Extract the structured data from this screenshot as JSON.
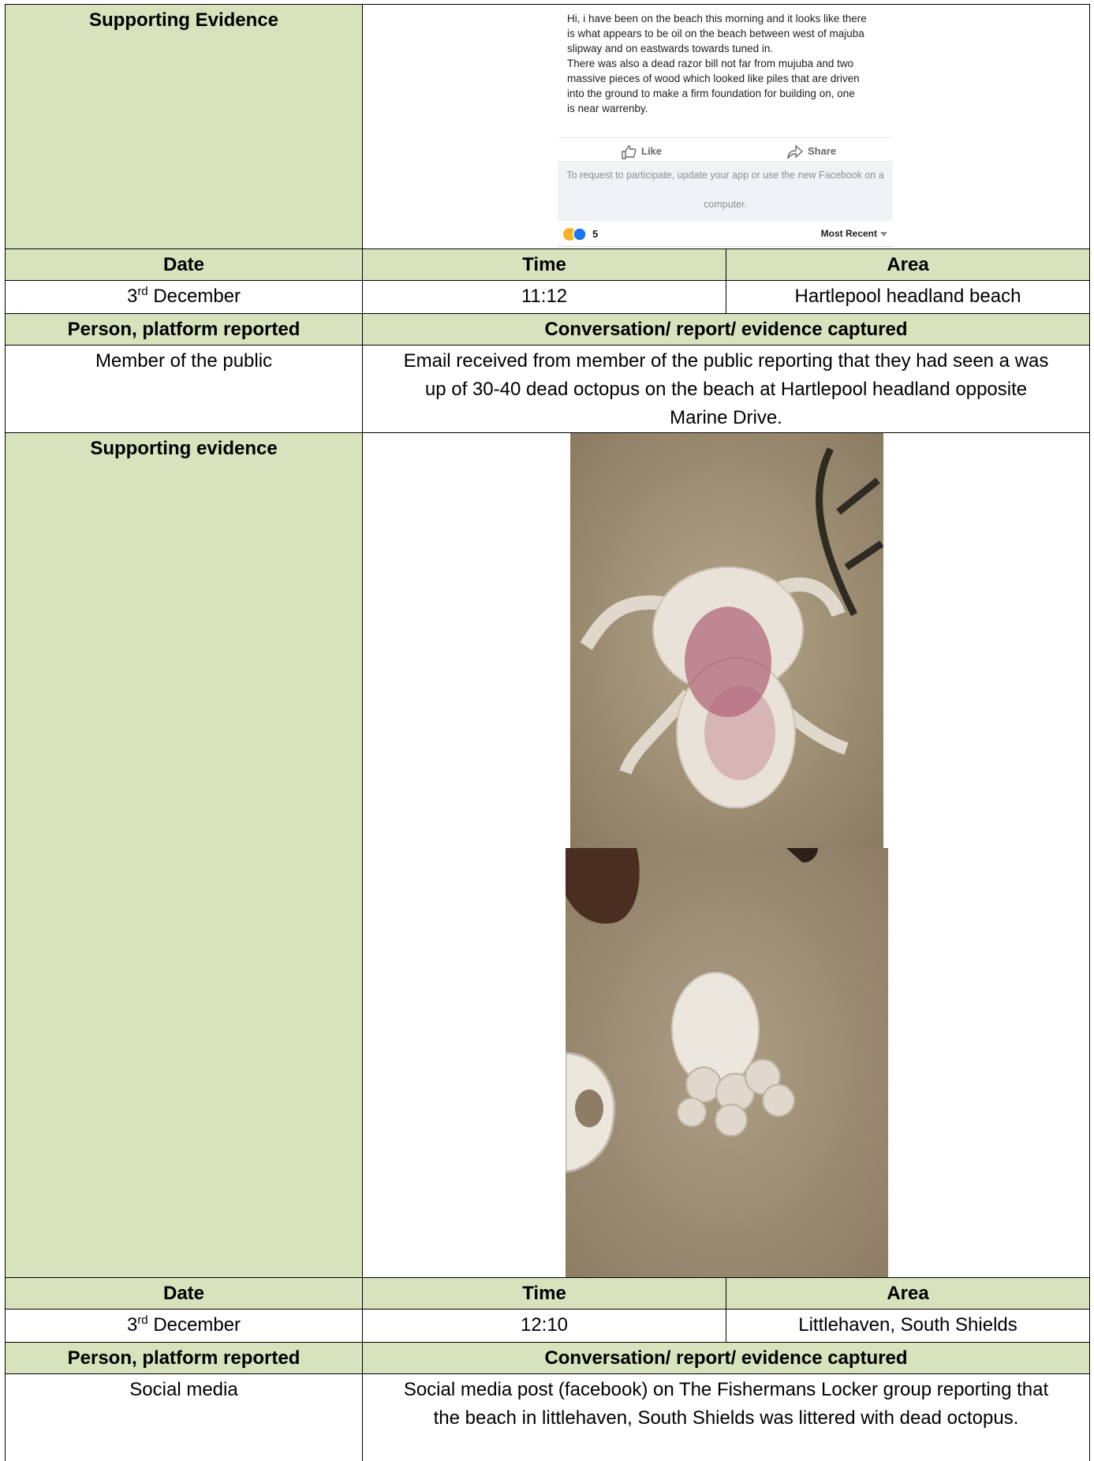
{
  "evidence_post": {
    "header": "Supporting Evidence",
    "post_lines": [
      "Hi, i have been on the beach this morning and it looks like there",
      "is what appears to be oil on the beach between west of majuba",
      "slipway and on eastwards towards tuned in.",
      "There was also a dead razor bill not far from mujuba and two",
      "massive pieces of wood which looked like piles that are driven",
      "into the ground to make a firm foundation for building on, one",
      "is near warrenby."
    ],
    "like": "Like",
    "share": "Share",
    "notice_lines": [
      "To request to participate, update your app or use the new Facebook on a",
      "computer."
    ],
    "reaction_count": "5",
    "sort": "Most Recent"
  },
  "reports": [
    {
      "date_header": "Date",
      "time_header": "Time",
      "area_header": "Area",
      "date": {
        "day": "3",
        "suffix": "rd",
        "month": "December"
      },
      "time": "11:12",
      "area": "Hartlepool headland beach",
      "person_header": "Person, platform reported",
      "conversation_header": "Conversation/ report/ evidence captured",
      "person": "Member of the public",
      "conversation": "Email received from member of the public reporting that they had seen a was up of 30-40 dead octopus on the beach at Hartlepool headland opposite Marine Drive.",
      "evidence_header": "Supporting evidence"
    },
    {
      "date_header": "Date",
      "time_header": "Time",
      "area_header": "Area",
      "date": {
        "day": "3",
        "suffix": "rd",
        "month": "December"
      },
      "time": "12:10",
      "area": "Littlehaven, South Shields",
      "person_header": "Person, platform reported",
      "conversation_header": "Conversation/ report/ evidence captured",
      "person": "Social media",
      "conversation": "Social media post (facebook) on The Fishermans Locker group reporting that the beach in littlehaven, South Shields was littered with dead octopus."
    }
  ]
}
